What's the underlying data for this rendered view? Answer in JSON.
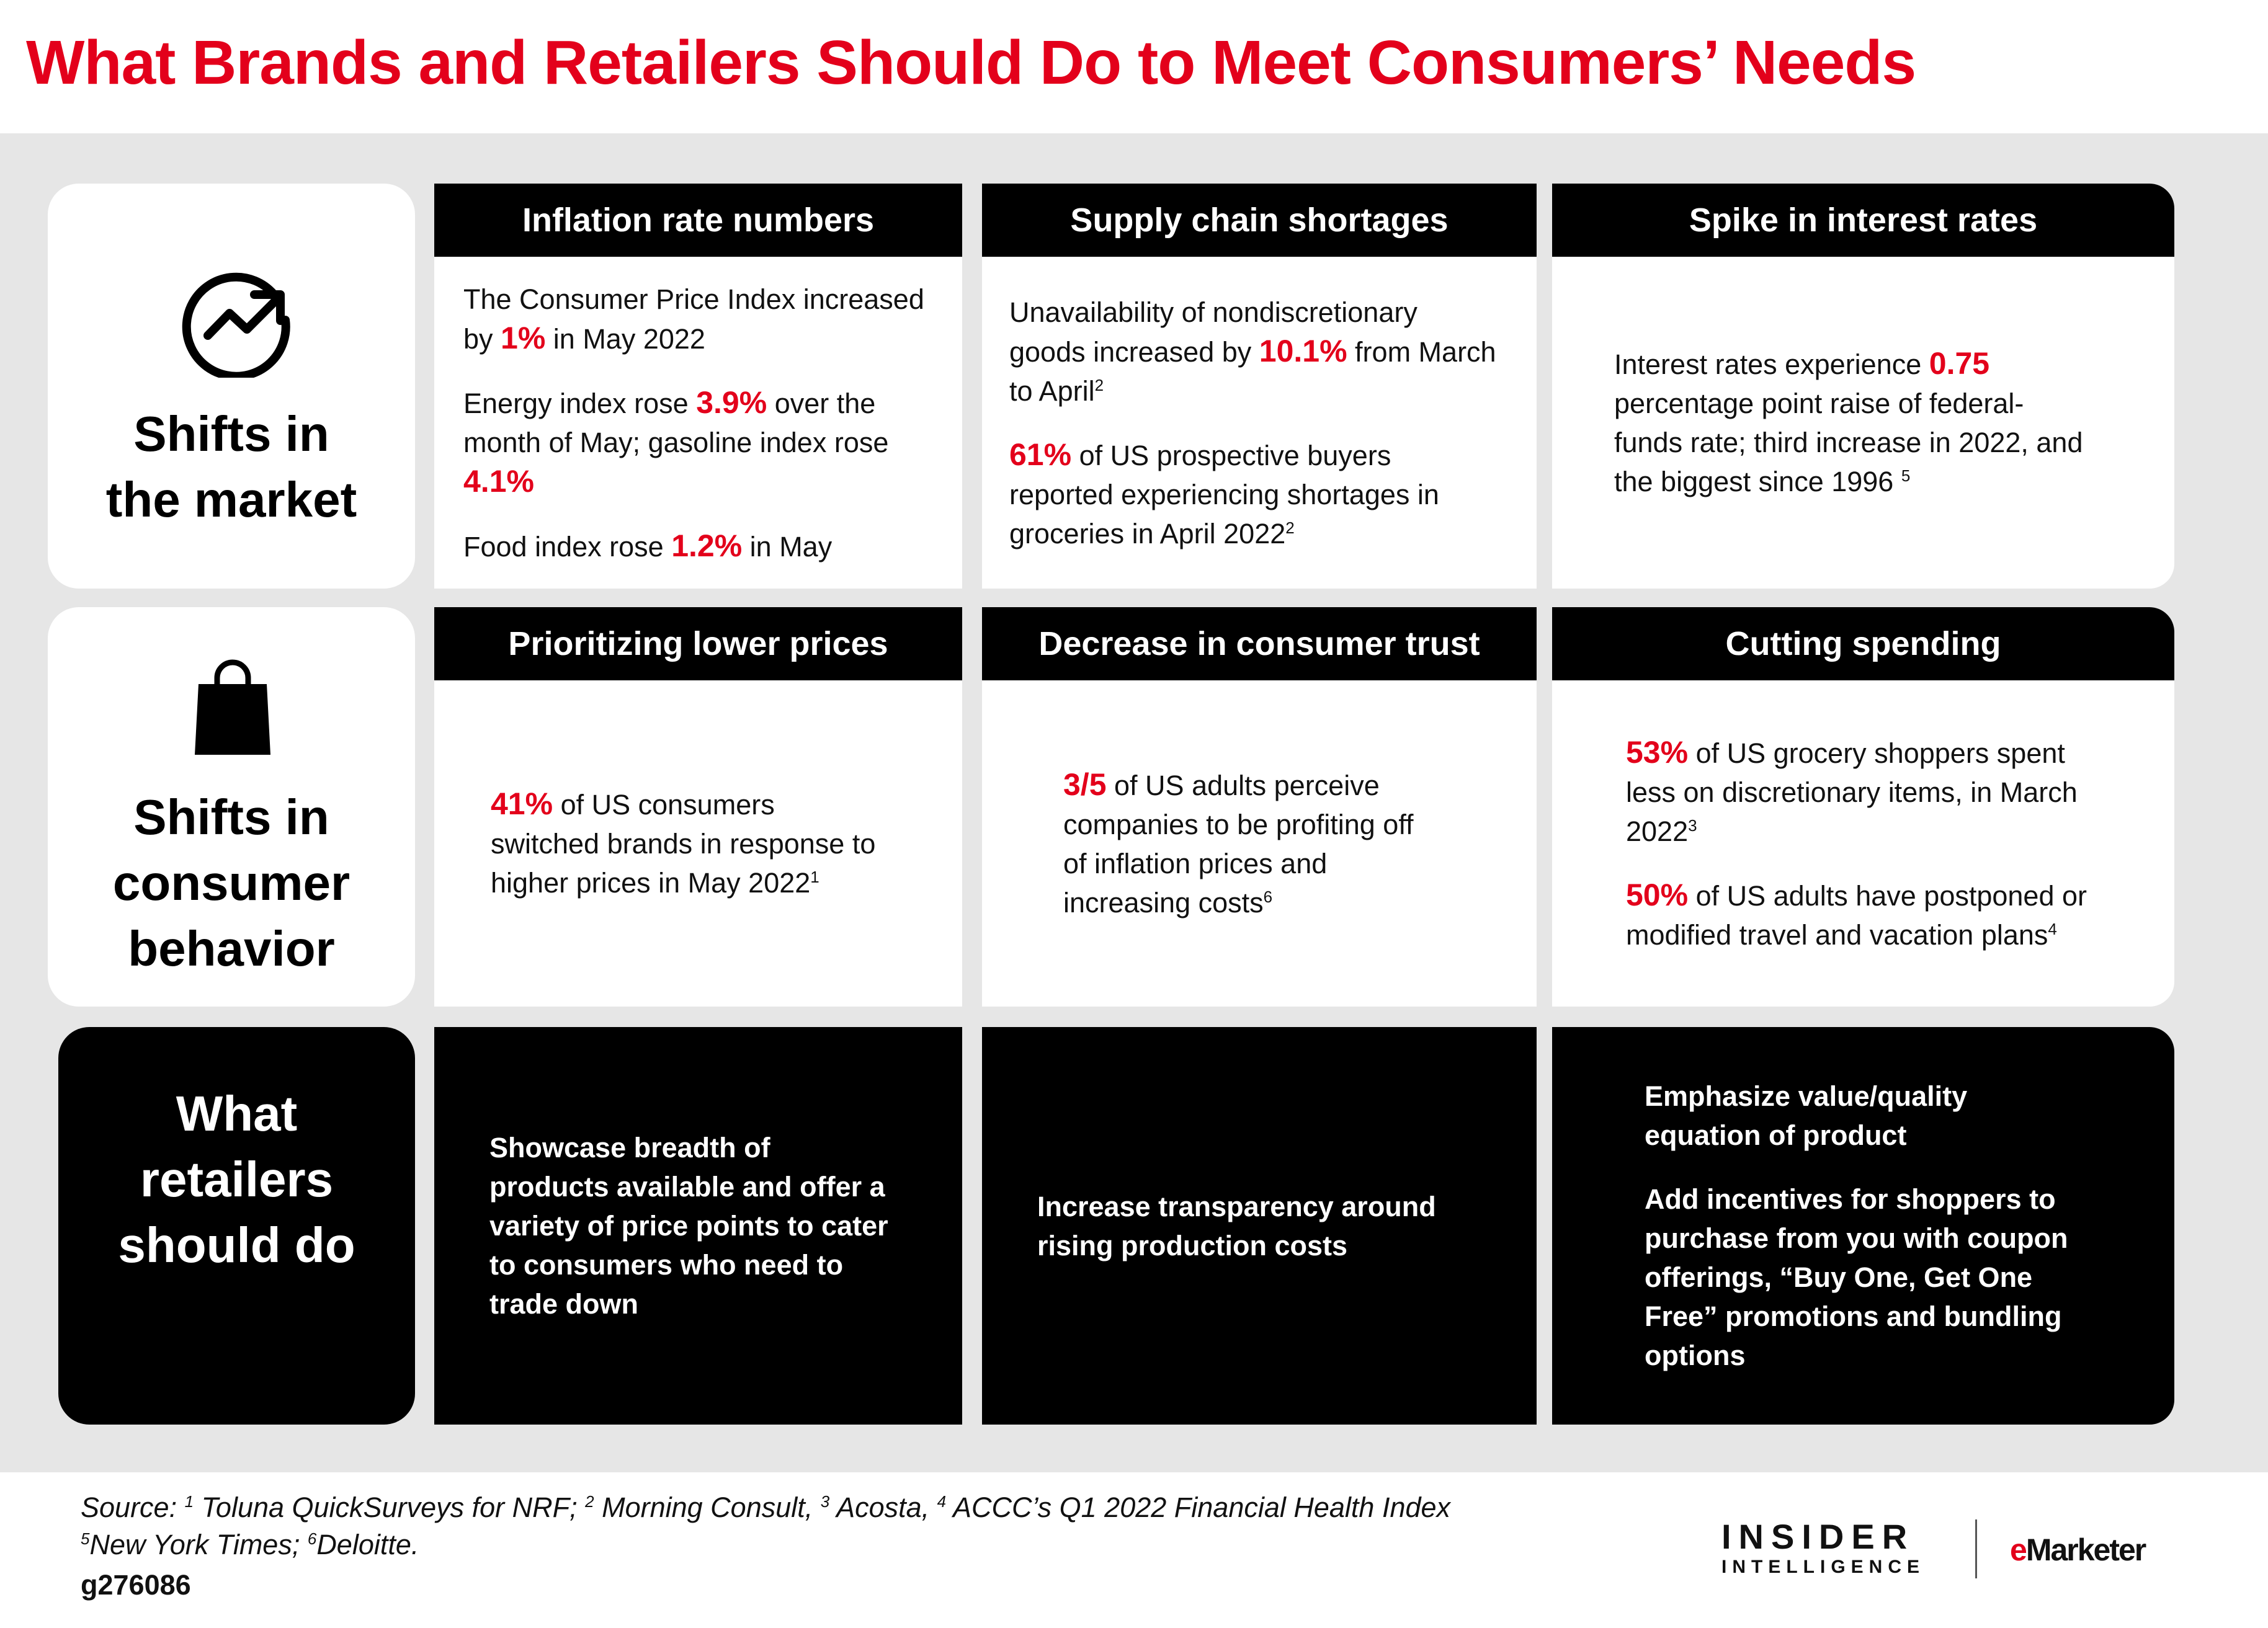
{
  "title": "What Brands and Retailers Should Do to Meet Consumers’ Needs",
  "rows": [
    {
      "label": [
        "Shifts in",
        "the market"
      ],
      "cells": [
        {
          "header": "Inflation rate numbers",
          "paragraphs": [
            [
              {
                "text": "The Consumer Price Index increased by "
              },
              {
                "text": "1%",
                "style": "red"
              },
              {
                "text": " in May 2022"
              }
            ],
            [
              {
                "text": "Energy index rose "
              },
              {
                "text": "3.9%",
                "style": "red"
              },
              {
                "text": " over the month of May; gasoline index rose "
              },
              {
                "text": "4.1%",
                "style": "red"
              }
            ],
            [
              {
                "text": "Food index rose "
              },
              {
                "text": "1.2%",
                "style": "red"
              },
              {
                "text": " in May"
              }
            ]
          ]
        },
        {
          "header": "Supply chain shortages",
          "paragraphs": [
            [
              {
                "text": "Unavailability of nondiscretionary goods increased by "
              },
              {
                "text": "10.1%",
                "style": "red"
              },
              {
                "text": " from March to April"
              },
              {
                "text": "2",
                "style": "sup"
              }
            ],
            [
              {
                "text": "61%",
                "style": "red"
              },
              {
                "text": " of US prospective buyers reported experiencing shortages in groceries in April 2022"
              },
              {
                "text": "2",
                "style": "sup"
              }
            ]
          ]
        },
        {
          "header": "Spike in interest rates",
          "paragraphs": [
            [
              {
                "text": "Interest rates experience "
              },
              {
                "text": "0.75",
                "style": "red"
              },
              {
                "text": " percentage point raise of federal-funds rate; third increase in 2022, and the biggest since 1996 "
              },
              {
                "text": "5",
                "style": "sup"
              }
            ]
          ]
        }
      ]
    },
    {
      "label": [
        "Shifts in",
        "consumer",
        "behavior"
      ],
      "cells": [
        {
          "header": "Prioritizing lower prices",
          "paragraphs": [
            [
              {
                "text": "41%",
                "style": "red"
              },
              {
                "text": " of US consumers switched brands in response to higher prices in May 2022"
              },
              {
                "text": "1",
                "style": "sup"
              }
            ]
          ]
        },
        {
          "header": "Decrease in consumer trust",
          "paragraphs": [
            [
              {
                "text": "3/5",
                "style": "red"
              },
              {
                "text": " of US adults perceive companies to be profiting off of inflation prices and increasing costs"
              },
              {
                "text": "6",
                "style": "sup"
              }
            ]
          ]
        },
        {
          "header": "Cutting spending",
          "paragraphs": [
            [
              {
                "text": "53%",
                "style": "red"
              },
              {
                "text": " of US grocery shoppers spent less on discretionary items, in March 2022"
              },
              {
                "text": "3",
                "style": "sup"
              }
            ],
            [
              {
                "text": "50%",
                "style": "red"
              },
              {
                "text": " of US adults have postponed or modified travel and vacation plans"
              },
              {
                "text": "4",
                "style": "sup"
              }
            ]
          ]
        }
      ]
    },
    {
      "label": [
        "What",
        "retailers",
        "should do"
      ],
      "cells": [
        {
          "paragraphs": [
            [
              {
                "text": "Showcase breadth of products available and offer a variety of price points to cater to consumers who need to trade down"
              }
            ]
          ]
        },
        {
          "paragraphs": [
            [
              {
                "text": "Increase transparency around rising production costs"
              }
            ]
          ]
        },
        {
          "paragraphs": [
            [
              {
                "text": "Emphasize value/quality equation of product"
              }
            ],
            [
              {
                "text": "Add incentives for shoppers to purchase from you with coupon offerings, “Buy One, Get One Free” promotions and bundling options"
              }
            ]
          ]
        }
      ]
    }
  ],
  "footer": {
    "source": [
      [
        {
          "text": "Source: "
        },
        {
          "text": "1",
          "style": "sup"
        },
        {
          "text": " Toluna QuickSurveys for NRF; "
        },
        {
          "text": "2",
          "style": "sup"
        },
        {
          "text": " Morning Consult, "
        },
        {
          "text": "3",
          "style": "sup"
        },
        {
          "text": " Acosta, "
        },
        {
          "text": "4",
          "style": "sup"
        },
        {
          "text": " ACCC’s Q1 2022 Financial Health Index"
        }
      ],
      [
        {
          "text": "5",
          "style": "sup"
        },
        {
          "text": "New York Times; "
        },
        {
          "text": "6",
          "style": "sup"
        },
        {
          "text": "Deloitte."
        }
      ]
    ],
    "id": "g276086"
  },
  "logos": {
    "insider": "INSIDER",
    "intelligence": "INTELLIGENCE",
    "emarketer_e": "e",
    "emarketer_rest": "Marketer"
  }
}
